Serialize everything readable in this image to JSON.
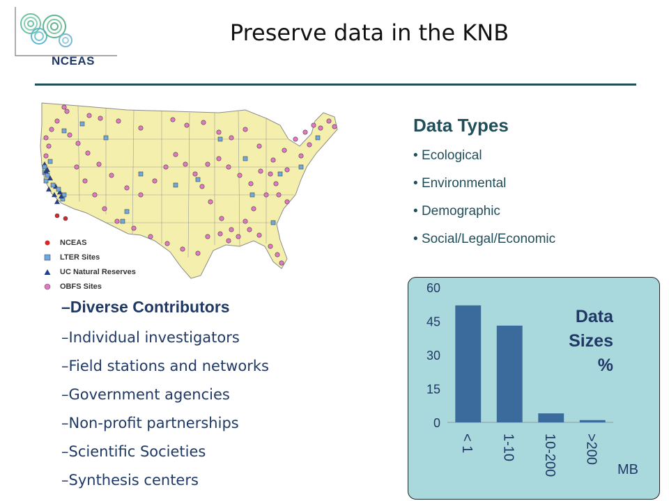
{
  "header": {
    "logo_text": "NCEAS",
    "title": "Preserve data in the KNB"
  },
  "map": {
    "legend": [
      {
        "label": "NCEAS",
        "symbol": "circle",
        "color": "#d62728"
      },
      {
        "label": "LTER Sites",
        "symbol": "square",
        "color": "#6fa8dc"
      },
      {
        "label": "UC Natural Reserves",
        "symbol": "triangle",
        "color": "#1f3f8f"
      },
      {
        "label": "OBFS Sites",
        "symbol": "circle",
        "color": "#e377c2"
      }
    ],
    "land_color": "#f5efad",
    "outside_color": "#dadada"
  },
  "data_types": {
    "heading": "Data Types",
    "items": [
      "Ecological",
      "Environmental",
      "Demographic",
      "Social/Legal/Economic"
    ]
  },
  "contributors": {
    "heading": "–Diverse Contributors",
    "items": [
      "–Individual investigators",
      "–Field stations and networks",
      "–Government agencies",
      "–Non-profit partnerships",
      "–Scientific Societies",
      "–Synthesis centers"
    ]
  },
  "chart_data": {
    "type": "bar",
    "title_lines": [
      "Data",
      "Sizes",
      "%"
    ],
    "categories": [
      "< 1",
      "1-10",
      "10-200",
      ">200"
    ],
    "values": [
      52,
      43,
      4,
      1
    ],
    "yticks": [
      0,
      15,
      30,
      45,
      60
    ],
    "ylim": [
      0,
      60
    ],
    "xunit": "MB",
    "bar_color": "#3a6b9c",
    "grid": false
  }
}
